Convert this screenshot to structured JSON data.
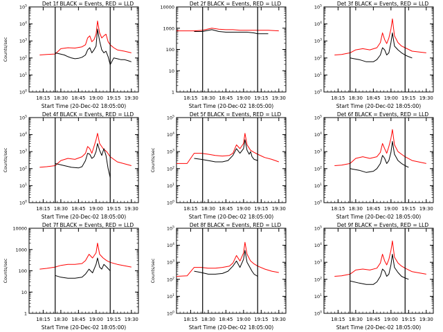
{
  "chart_data": [
    {
      "type": "line",
      "title": "Det 1f BLACK = Events, RED = LLD",
      "ylabel": "Counts/sec",
      "xlabel": "Start Time (20-Dec-02 18:05:00)",
      "yscale": "log",
      "ylim": [
        1,
        100000
      ],
      "ytick_labels": [
        "10^0",
        "10^1",
        "10^2",
        "10^3",
        "10^4",
        "10^5"
      ],
      "xtick_labels": [
        "18:15",
        "18:30",
        "18:45",
        "19:00",
        "19:15",
        "19:30"
      ],
      "series": [
        {
          "name": "Events",
          "color": "#000000",
          "x": [
            18.42,
            18.55,
            18.6,
            18.65,
            18.7,
            18.75,
            18.8,
            18.85,
            18.88,
            18.91,
            18.94,
            18.97,
            19.0,
            19.02,
            19.05,
            19.08,
            19.11,
            19.14,
            19.17,
            19.2,
            19.25,
            19.3,
            19.35,
            19.4,
            19.45,
            19.5
          ],
          "y": [
            200,
            150,
            120,
            100,
            90,
            95,
            110,
            150,
            300,
            400,
            200,
            300,
            500,
            5000,
            1000,
            300,
            200,
            250,
            120,
            40,
            100,
            90,
            80,
            80,
            70,
            60
          ]
        },
        {
          "name": "LLD",
          "color": "#ff0000",
          "x": [
            18.2,
            18.3,
            18.42,
            18.5,
            18.6,
            18.7,
            18.8,
            18.85,
            18.88,
            18.91,
            18.94,
            18.97,
            19.0,
            19.02,
            19.05,
            19.08,
            19.11,
            19.14,
            19.17,
            19.2,
            19.25,
            19.3,
            19.4,
            19.5
          ],
          "y": [
            150,
            160,
            170,
            350,
            400,
            380,
            450,
            600,
            1500,
            2000,
            900,
            1200,
            2500,
            15000,
            3000,
            1500,
            2000,
            2500,
            900,
            600,
            400,
            300,
            250,
            200
          ]
        }
      ]
    },
    {
      "type": "line",
      "title": "Det 2f BLACK = Events, RED = LLD",
      "ylabel": "",
      "xlabel": "Start Time (20-Dec-02 18:05:00)",
      "yscale": "log",
      "ylim": [
        1,
        10000
      ],
      "ytick_labels": [
        "1",
        "10",
        "100",
        "1000",
        "10000"
      ],
      "xtick_labels": [
        "18:15",
        "18:30",
        "18:45",
        "19:00",
        "19:15",
        "19:30"
      ],
      "series": [
        {
          "name": "Events",
          "color": "#000000",
          "x": [
            18.3,
            18.42,
            18.55,
            18.65,
            18.75,
            18.85,
            18.95,
            19.05,
            19.15,
            19.2,
            19.25,
            19.35
          ],
          "y": [
            700,
            700,
            850,
            700,
            650,
            650,
            650,
            650,
            600,
            550,
            550,
            550
          ]
        },
        {
          "name": "LLD",
          "color": "#ff0000",
          "x": [
            18.05,
            18.3,
            18.42,
            18.55,
            18.65,
            18.75,
            18.85,
            18.95,
            19.05,
            19.15,
            19.25,
            19.35,
            19.5
          ],
          "y": [
            750,
            750,
            800,
            1000,
            900,
            850,
            850,
            800,
            800,
            800,
            800,
            800,
            750
          ]
        }
      ]
    },
    {
      "type": "line",
      "title": "Det 3f BLACK = Events, RED = LLD",
      "ylabel": "",
      "xlabel": "Start Time (20-Dec-02 18:05:00)",
      "yscale": "log",
      "ylim": [
        1,
        100000
      ],
      "ytick_labels": [
        "10^0",
        "10^1",
        "10^2",
        "10^3",
        "10^4",
        "10^5"
      ],
      "xtick_labels": [
        "18:15",
        "18:30",
        "18:45",
        "19:00",
        "19:15",
        "19:30"
      ],
      "series": [
        {
          "name": "Events",
          "color": "#000000",
          "x": [
            18.42,
            18.55,
            18.65,
            18.75,
            18.8,
            18.85,
            18.88,
            18.91,
            18.94,
            18.97,
            19.0,
            19.02,
            19.05,
            19.1,
            19.15,
            19.2,
            19.25,
            19.3
          ],
          "y": [
            100,
            80,
            60,
            60,
            80,
            150,
            400,
            300,
            150,
            200,
            800,
            3000,
            500,
            300,
            200,
            150,
            120,
            100
          ]
        },
        {
          "name": "LLD",
          "color": "#ff0000",
          "x": [
            18.2,
            18.3,
            18.42,
            18.5,
            18.6,
            18.7,
            18.8,
            18.85,
            18.88,
            18.91,
            18.94,
            18.97,
            19.0,
            19.02,
            19.05,
            19.1,
            19.15,
            19.2,
            19.3,
            19.5
          ],
          "y": [
            150,
            160,
            200,
            300,
            350,
            300,
            400,
            800,
            3000,
            1200,
            700,
            1500,
            5000,
            20000,
            2000,
            800,
            500,
            400,
            250,
            200
          ]
        }
      ]
    },
    {
      "type": "line",
      "title": "Det 4f BLACK = Events, RED = LLD",
      "ylabel": "Counts/sec",
      "xlabel": "Start Time (20-Dec-02 18:05:00)",
      "yscale": "log",
      "ylim": [
        1,
        100000
      ],
      "ytick_labels": [
        "10^0",
        "10^1",
        "10^2",
        "10^3",
        "10^4",
        "10^5"
      ],
      "xtick_labels": [
        "18:15",
        "18:30",
        "18:45",
        "19:00",
        "19:15",
        "19:30"
      ],
      "series": [
        {
          "name": "Events",
          "color": "#000000",
          "x": [
            18.42,
            18.55,
            18.65,
            18.75,
            18.8,
            18.85,
            18.88,
            18.91,
            18.94,
            18.97,
            19.0,
            19.02,
            19.05,
            19.08,
            19.11,
            19.14,
            19.17,
            19.2
          ],
          "y": [
            200,
            150,
            120,
            110,
            130,
            300,
            800,
            700,
            400,
            500,
            1000,
            3000,
            1200,
            600,
            1500,
            600,
            100,
            30
          ]
        },
        {
          "name": "LLD",
          "color": "#ff0000",
          "x": [
            18.2,
            18.3,
            18.42,
            18.5,
            18.6,
            18.7,
            18.8,
            18.85,
            18.88,
            18.91,
            18.94,
            18.97,
            19.0,
            19.02,
            19.05,
            19.1,
            19.15,
            19.2,
            19.3,
            19.5
          ],
          "y": [
            120,
            130,
            150,
            300,
            400,
            350,
            500,
            800,
            2000,
            1500,
            800,
            2000,
            5000,
            12000,
            3000,
            1500,
            1000,
            500,
            250,
            150
          ]
        }
      ]
    },
    {
      "type": "line",
      "title": "Det 5f BLACK = Events, RED = LLD",
      "ylabel": "Counts/sec",
      "xlabel": "Start Time (20-Dec-02 18:05:00)",
      "yscale": "log",
      "ylim": [
        1,
        100000
      ],
      "ytick_labels": [
        "10^0",
        "10^1",
        "10^2",
        "10^3",
        "10^4",
        "10^5"
      ],
      "xtick_labels": [
        "18:15",
        "18:30",
        "18:45",
        "19:00",
        "19:15",
        "19:30"
      ],
      "series": [
        {
          "name": "Events",
          "color": "#000000",
          "x": [
            18.3,
            18.4,
            18.5,
            18.6,
            18.7,
            18.78,
            18.85,
            18.9,
            18.95,
            19.0,
            19.02,
            19.05,
            19.08,
            19.1,
            19.12,
            19.15,
            19.2
          ],
          "y": [
            400,
            350,
            300,
            250,
            250,
            300,
            600,
            1500,
            800,
            1500,
            5000,
            1200,
            700,
            1000,
            500,
            350,
            300
          ]
        },
        {
          "name": "LLD",
          "color": "#ff0000",
          "x": [
            18.05,
            18.2,
            18.3,
            18.4,
            18.5,
            18.6,
            18.7,
            18.8,
            18.85,
            18.9,
            18.95,
            19.0,
            19.02,
            19.05,
            19.1,
            19.15,
            19.2,
            19.3,
            19.4,
            19.5
          ],
          "y": [
            200,
            200,
            800,
            800,
            700,
            600,
            550,
            600,
            800,
            2500,
            1500,
            3000,
            12000,
            2500,
            1200,
            900,
            700,
            450,
            350,
            250
          ]
        }
      ]
    },
    {
      "type": "line",
      "title": "Det 6f BLACK = Events, RED = LLD",
      "ylabel": "",
      "xlabel": "Start Time (20-Dec-02 18:05:00)",
      "yscale": "log",
      "ylim": [
        1,
        100000
      ],
      "ytick_labels": [
        "10^0",
        "10^1",
        "10^2",
        "10^3",
        "10^4",
        "10^5"
      ],
      "xtick_labels": [
        "18:15",
        "18:30",
        "18:45",
        "19:00",
        "19:15",
        "19:30"
      ],
      "series": [
        {
          "name": "Events",
          "color": "#000000",
          "x": [
            18.42,
            18.55,
            18.65,
            18.75,
            18.8,
            18.85,
            18.88,
            18.91,
            18.94,
            18.97,
            19.0,
            19.02,
            19.05,
            19.1,
            19.15,
            19.2,
            19.25
          ],
          "y": [
            100,
            80,
            60,
            70,
            100,
            200,
            600,
            400,
            200,
            300,
            900,
            4000,
            700,
            300,
            200,
            150,
            120
          ]
        },
        {
          "name": "LLD",
          "color": "#ff0000",
          "x": [
            18.2,
            18.3,
            18.42,
            18.5,
            18.6,
            18.7,
            18.8,
            18.85,
            18.88,
            18.91,
            18.94,
            18.97,
            19.0,
            19.02,
            19.05,
            19.1,
            19.15,
            19.2,
            19.3,
            19.5
          ],
          "y": [
            150,
            160,
            200,
            400,
            500,
            400,
            500,
            900,
            3000,
            1500,
            800,
            2000,
            6000,
            20000,
            2500,
            1000,
            700,
            500,
            300,
            200
          ]
        }
      ]
    },
    {
      "type": "line",
      "title": "Det 7f BLACK = Events, RED = LLD",
      "ylabel": "Counts/sec",
      "xlabel": "Start Time (20-Dec-02 18:05:00)",
      "yscale": "log",
      "ylim": [
        1,
        10000
      ],
      "ytick_labels": [
        "1",
        "10",
        "100",
        "1000",
        "10000"
      ],
      "xtick_labels": [
        "18:15",
        "18:30",
        "18:45",
        "19:00",
        "19:15",
        "19:30"
      ],
      "series": [
        {
          "name": "Events",
          "color": "#000000",
          "x": [
            18.42,
            18.5,
            18.6,
            18.7,
            18.8,
            18.85,
            18.9,
            18.95,
            19.0,
            19.02,
            19.05,
            19.08,
            19.11,
            19.15,
            19.2
          ],
          "y": [
            60,
            50,
            45,
            45,
            50,
            70,
            120,
            80,
            200,
            400,
            150,
            120,
            200,
            150,
            100
          ]
        },
        {
          "name": "LLD",
          "color": "#ff0000",
          "x": [
            18.2,
            18.3,
            18.42,
            18.5,
            18.6,
            18.7,
            18.8,
            18.85,
            18.9,
            18.95,
            19.0,
            19.02,
            19.05,
            19.1,
            19.15,
            19.2,
            19.3,
            19.5
          ],
          "y": [
            120,
            130,
            150,
            180,
            200,
            200,
            220,
            300,
            600,
            400,
            700,
            2000,
            600,
            400,
            300,
            250,
            200,
            150
          ]
        }
      ]
    },
    {
      "type": "line",
      "title": "Det 8f BLACK = Events, RED = LLD",
      "ylabel": "Counts/sec",
      "xlabel": "Start Time (20-Dec-02 18:05:00)",
      "yscale": "log",
      "ylim": [
        1,
        100000
      ],
      "ytick_labels": [
        "10^0",
        "10^1",
        "10^2",
        "10^3",
        "10^4",
        "10^5"
      ],
      "xtick_labels": [
        "18:15",
        "18:30",
        "18:45",
        "19:00",
        "19:15",
        "19:30"
      ],
      "series": [
        {
          "name": "Events",
          "color": "#000000",
          "x": [
            18.3,
            18.4,
            18.5,
            18.6,
            18.7,
            18.78,
            18.85,
            18.9,
            18.95,
            19.0,
            19.02,
            19.05,
            19.08,
            19.12,
            19.15,
            19.2
          ],
          "y": [
            300,
            250,
            200,
            200,
            220,
            300,
            600,
            1200,
            500,
            1500,
            5000,
            1000,
            600,
            300,
            200,
            150
          ]
        },
        {
          "name": "LLD",
          "color": "#ff0000",
          "x": [
            18.05,
            18.2,
            18.3,
            18.4,
            18.5,
            18.6,
            18.7,
            18.8,
            18.85,
            18.9,
            18.95,
            19.0,
            19.02,
            19.05,
            19.1,
            19.15,
            19.2,
            19.3,
            19.4,
            19.5
          ],
          "y": [
            150,
            160,
            500,
            500,
            450,
            450,
            500,
            600,
            900,
            2500,
            1200,
            3500,
            15000,
            3000,
            1200,
            800,
            600,
            400,
            300,
            250
          ]
        }
      ]
    },
    {
      "type": "line",
      "title": "Det 9f BLACK = Events, RED = LLD",
      "ylabel": "",
      "xlabel": "Start Time (20-Dec-02 18:05:00)",
      "yscale": "log",
      "ylim": [
        1,
        100000
      ],
      "ytick_labels": [
        "10^0",
        "10^1",
        "10^2",
        "10^3",
        "10^4",
        "10^5"
      ],
      "xtick_labels": [
        "18:15",
        "18:30",
        "18:45",
        "19:00",
        "19:15",
        "19:30"
      ],
      "series": [
        {
          "name": "Events",
          "color": "#000000",
          "x": [
            18.42,
            18.55,
            18.65,
            18.75,
            18.8,
            18.85,
            18.88,
            18.91,
            18.94,
            18.97,
            19.0,
            19.02,
            19.05,
            19.1,
            19.15,
            19.2,
            19.25
          ],
          "y": [
            80,
            60,
            50,
            50,
            70,
            150,
            400,
            300,
            150,
            200,
            700,
            3000,
            500,
            250,
            150,
            120,
            100
          ]
        },
        {
          "name": "LLD",
          "color": "#ff0000",
          "x": [
            18.2,
            18.3,
            18.42,
            18.5,
            18.6,
            18.7,
            18.8,
            18.85,
            18.88,
            18.91,
            18.94,
            18.97,
            19.0,
            19.02,
            19.05,
            19.1,
            19.15,
            19.2,
            19.3,
            19.5
          ],
          "y": [
            150,
            160,
            200,
            350,
            400,
            350,
            450,
            900,
            3000,
            1200,
            700,
            1500,
            5000,
            18000,
            2000,
            900,
            600,
            450,
            280,
            200
          ]
        }
      ]
    }
  ]
}
